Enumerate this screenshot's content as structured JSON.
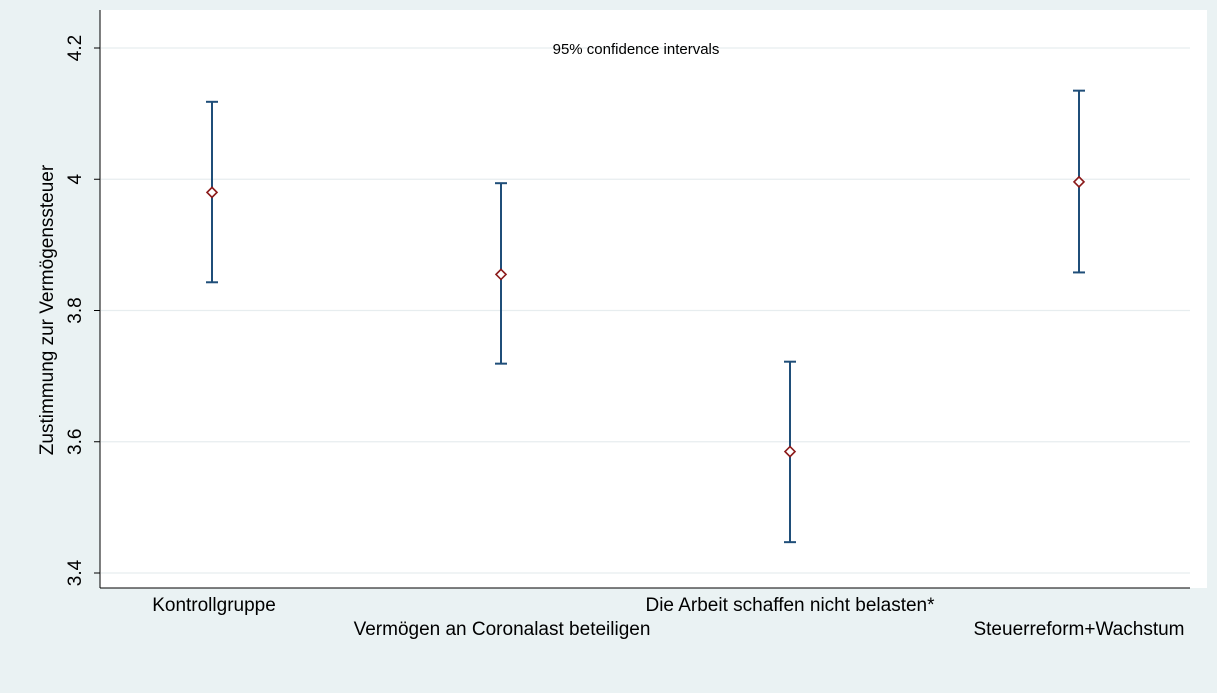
{
  "chart_data": {
    "type": "scatter",
    "subtitle": "95% confidence intervals",
    "ylabel": "Zustimmung zur Vermögenssteuer",
    "xlabel": "",
    "ylim": [
      3.4,
      4.2
    ],
    "yticks": [
      3.4,
      3.6,
      3.8,
      4.0,
      4.2
    ],
    "ytick_labels": [
      "3.4",
      "3.6",
      "3.8",
      "4",
      "4.2"
    ],
    "grid": true,
    "categories": [
      "Kontrollgruppe",
      "Vermögen an Coronalast beteiligen",
      "Die Arbeit schaffen nicht belasten*",
      "Steuerreform+Wachstum"
    ],
    "points": [
      {
        "x": 1,
        "y": 3.98,
        "ci_low": 3.843,
        "ci_high": 4.118
      },
      {
        "x": 2,
        "y": 3.855,
        "ci_low": 3.719,
        "ci_high": 3.994
      },
      {
        "x": 3,
        "y": 3.585,
        "ci_low": 3.447,
        "ci_high": 3.722
      },
      {
        "x": 4,
        "y": 3.996,
        "ci_low": 3.858,
        "ci_high": 4.135
      }
    ],
    "colors": {
      "ci": "#1f4e79",
      "marker": "#8b1a1a",
      "grid": "#e7edef",
      "outer_background": "#eaf2f3",
      "plot_background": "#ffffff"
    }
  }
}
